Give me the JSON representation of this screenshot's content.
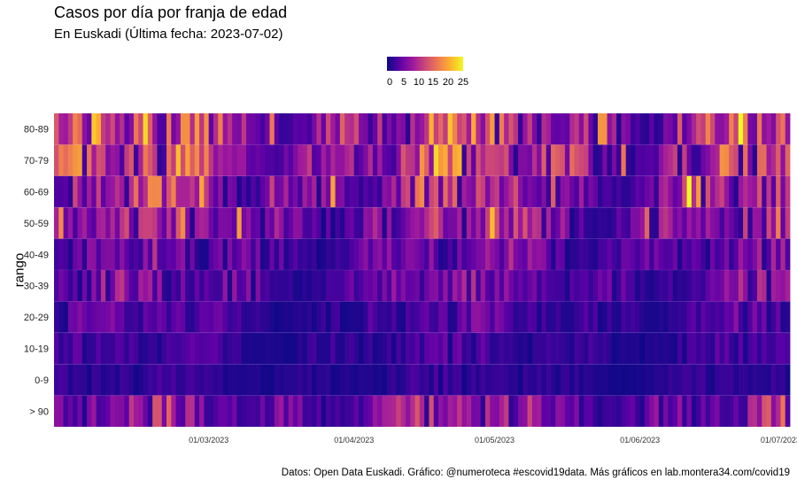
{
  "chart_data": {
    "type": "heatmap",
    "title": "Casos por día por franja de edad",
    "subtitle": "En Euskadi  (Última fecha: 2023-07-02)",
    "xlabel": "",
    "ylabel": "rango",
    "caption": "Datos: Open Data Euskadi. Gráfico: @numeroteca   #escovid19data. Más gráficos en lab.montera34.com/covid19",
    "x_start": "2023-01-27",
    "x_end": "2023-07-02",
    "x_ticks": [
      "01/03/2023",
      "01/04/2023",
      "01/05/2023",
      "01/06/2023",
      "01/07/2023"
    ],
    "rows": [
      "80-89",
      "70-79",
      "60-69",
      "50-59",
      "40-49",
      "30-39",
      "20-29",
      "10-19",
      "0-9",
      "> 90"
    ],
    "row_base_values": [
      12,
      12,
      10,
      9,
      6,
      6,
      4,
      3,
      2,
      8
    ],
    "color_scale": {
      "name": "plasma",
      "min": 0,
      "max": 27,
      "ticks": [
        "0",
        "5",
        "10",
        "15",
        "20",
        "25"
      ],
      "colors": [
        "#0d0887",
        "#5d01a6",
        "#9c179e",
        "#cc4778",
        "#ed7953",
        "#fdb32f",
        "#f0f921"
      ]
    }
  }
}
